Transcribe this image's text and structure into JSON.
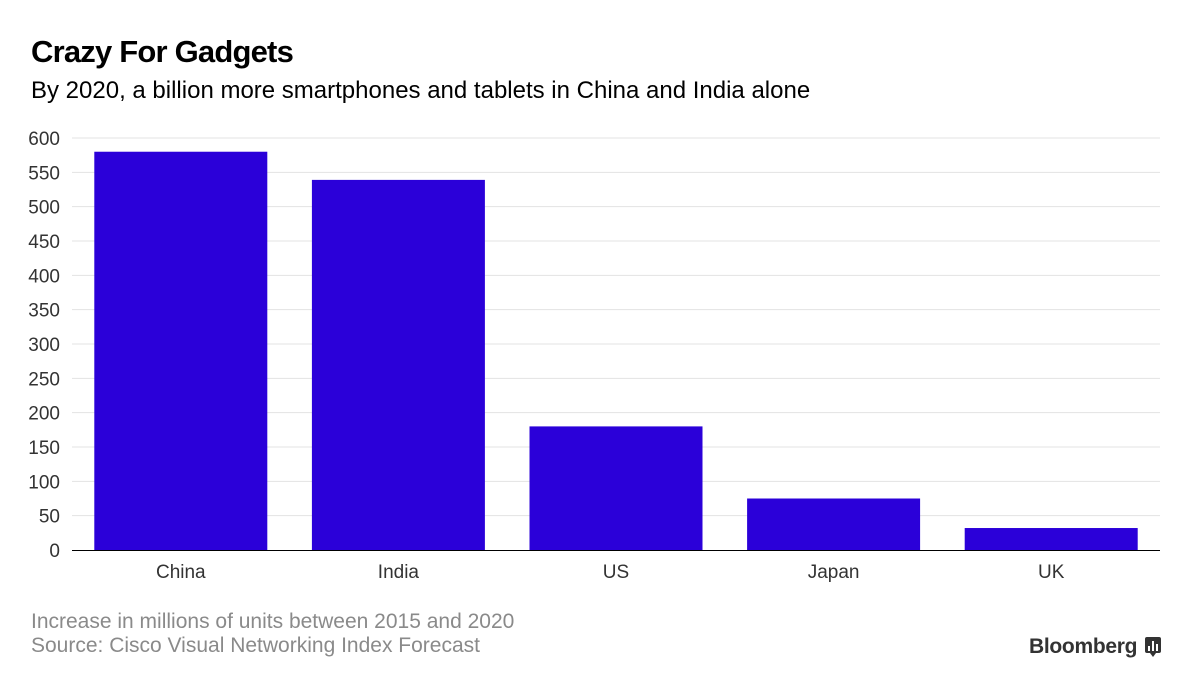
{
  "header": {
    "title": "Crazy For Gadgets",
    "subtitle": "By 2020, a billion more smartphones and tablets in China and India alone"
  },
  "chart_data": {
    "type": "bar",
    "categories": [
      "China",
      "India",
      "US",
      "Japan",
      "UK"
    ],
    "values": [
      580,
      539,
      180,
      75,
      32
    ],
    "ylim": [
      0,
      600
    ],
    "yticks": [
      0,
      50,
      100,
      150,
      200,
      250,
      300,
      350,
      400,
      450,
      500,
      550,
      600
    ],
    "grid": true,
    "bar_color": "#2b00d9"
  },
  "footer": {
    "note": "Increase in millions of units between 2015 and 2020",
    "source": "Source: Cisco Visual Networking Index Forecast",
    "brand": "Bloomberg"
  },
  "icons": {
    "brand_icon": "bloomberg-chart-icon"
  }
}
